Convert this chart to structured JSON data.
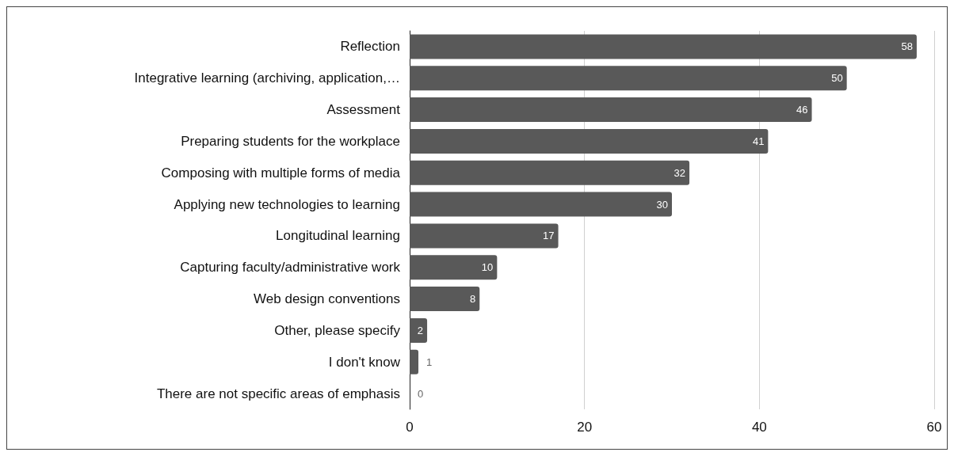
{
  "chart_data": {
    "type": "bar",
    "orientation": "horizontal",
    "categories": [
      "Reflection",
      "Integrative learning (archiving, application,…",
      "Assessment",
      "Preparing students for the workplace",
      "Composing with multiple forms of media",
      "Applying new technologies to learning",
      "Longitudinal learning",
      "Capturing faculty/administrative work",
      "Web design conventions",
      "Other, please specify",
      "I don't know",
      "There are not specific areas of emphasis"
    ],
    "values": [
      58,
      50,
      46,
      41,
      32,
      30,
      17,
      10,
      8,
      2,
      1,
      0
    ],
    "color": "#595959",
    "xlim": [
      0,
      60
    ],
    "xticks": [
      0,
      20,
      40,
      60
    ],
    "grid": "x",
    "data_labels": true
  }
}
